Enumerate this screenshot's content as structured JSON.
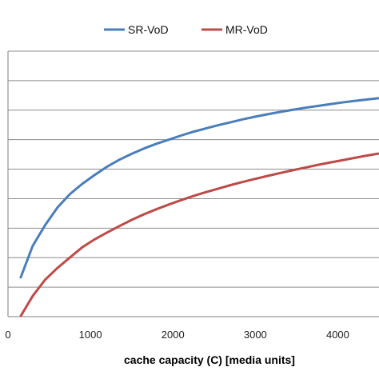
{
  "chart_data": {
    "type": "line",
    "title": "",
    "xlabel": "cache capacity (C) [media units]",
    "ylabel": "",
    "xlim": [
      0,
      4500
    ],
    "ylim": [
      0,
      9
    ],
    "x_ticks": [
      "0",
      "1000",
      "2000",
      "3000",
      "4000"
    ],
    "grid": true,
    "legend_position": "top",
    "series": [
      {
        "name": "SR-VoD",
        "color": "#4A7EBB",
        "x": [
          150,
          300,
          450,
          600,
          750,
          900,
          1050,
          1200,
          1350,
          1500,
          1650,
          1800,
          1950,
          2100,
          2250,
          2400,
          2550,
          2700,
          2850,
          3000,
          3150,
          3300,
          3450,
          3600,
          3750,
          3900,
          4050,
          4200,
          4350,
          4500
        ],
        "values": [
          1.3,
          2.4,
          3.1,
          3.7,
          4.15,
          4.5,
          4.8,
          5.08,
          5.32,
          5.52,
          5.7,
          5.86,
          6.0,
          6.14,
          6.27,
          6.38,
          6.49,
          6.59,
          6.69,
          6.78,
          6.86,
          6.94,
          7.01,
          7.08,
          7.14,
          7.2,
          7.26,
          7.31,
          7.36,
          7.41
        ]
      },
      {
        "name": "MR-VoD",
        "color": "#BE4B48",
        "x": [
          150,
          300,
          450,
          600,
          750,
          900,
          1050,
          1200,
          1350,
          1500,
          1650,
          1800,
          1950,
          2100,
          2250,
          2400,
          2550,
          2700,
          2850,
          3000,
          3150,
          3300,
          3450,
          3600,
          3750,
          3900,
          4050,
          4200,
          4350,
          4500
        ],
        "values": [
          0.0,
          0.7,
          1.25,
          1.65,
          2.0,
          2.35,
          2.62,
          2.85,
          3.07,
          3.28,
          3.47,
          3.64,
          3.8,
          3.95,
          4.09,
          4.22,
          4.34,
          4.46,
          4.57,
          4.67,
          4.77,
          4.87,
          4.96,
          5.05,
          5.14,
          5.22,
          5.3,
          5.38,
          5.46,
          5.53
        ]
      }
    ]
  }
}
